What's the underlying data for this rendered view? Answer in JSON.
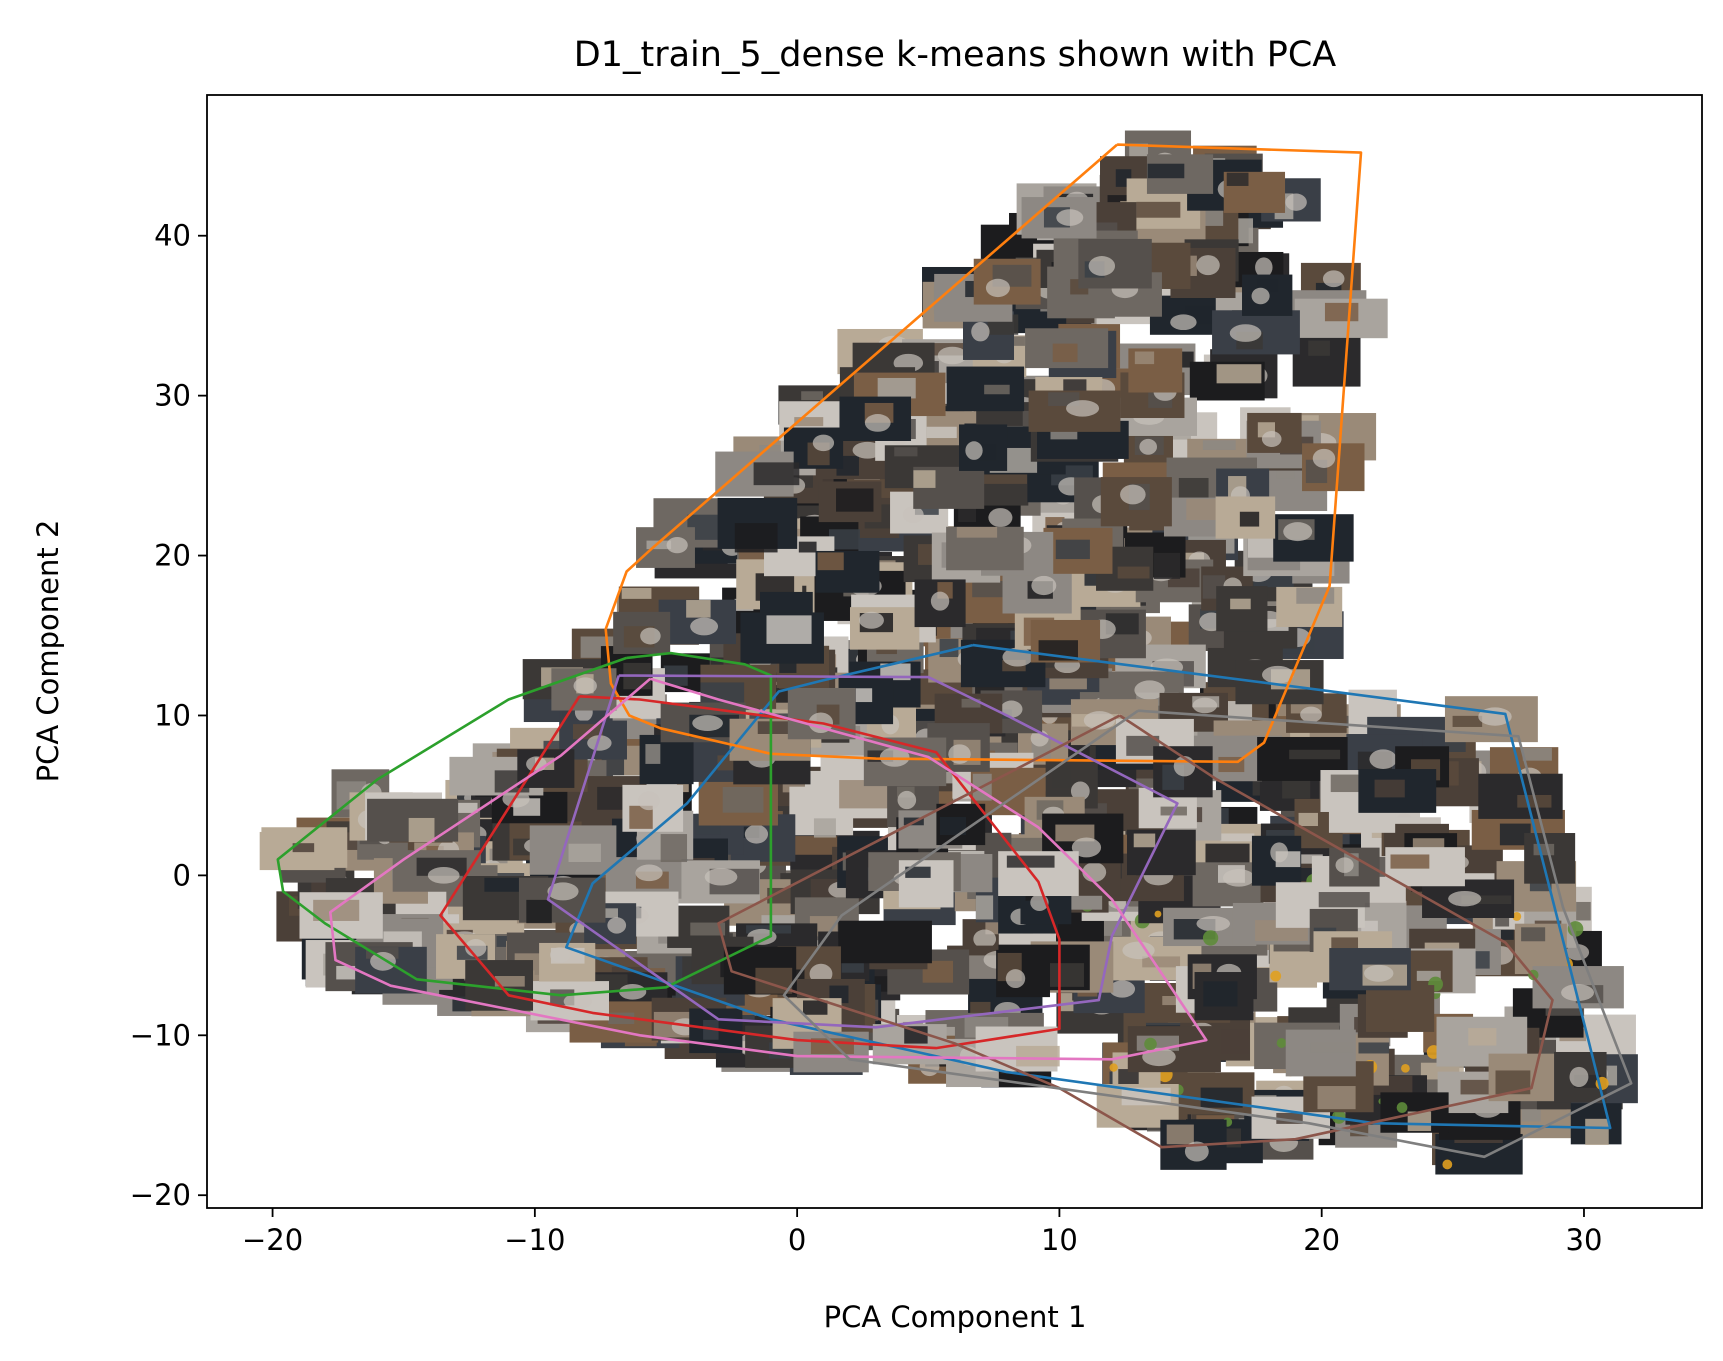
{
  "chart_data": {
    "type": "scatter",
    "title": "D1_train_5_dense k-means shown with PCA",
    "xlabel": "PCA Component 1",
    "ylabel": "PCA Component 2",
    "xlim": [
      -22.5,
      34.5
    ],
    "ylim": [
      -20.8,
      48.8
    ],
    "xticks": [
      -20,
      -10,
      0,
      10,
      20,
      30
    ],
    "yticks": [
      -20,
      -10,
      0,
      10,
      20,
      30,
      40
    ],
    "xtick_labels": [
      "−20",
      "−10",
      "0",
      "10",
      "20",
      "30"
    ],
    "ytick_labels": [
      "−20",
      "−10",
      "0",
      "10",
      "20",
      "30",
      "40"
    ],
    "grid": false,
    "legend": "none",
    "point_markers": "image thumbnails of kitchen-sink video frames",
    "series": [
      {
        "color": "#1f77b4",
        "hull": [
          [
            6.7,
            14.4
          ],
          [
            27,
            10.1
          ],
          [
            30.2,
            -10.5
          ],
          [
            31,
            -15.8
          ],
          [
            22,
            -15.5
          ],
          [
            8,
            -12.3
          ],
          [
            -1,
            -9
          ],
          [
            -8.8,
            -4.5
          ],
          [
            -7.8,
            -0.5
          ],
          [
            -4.2,
            4.5
          ],
          [
            -0.7,
            11.5
          ],
          [
            1,
            12.2
          ],
          [
            6.7,
            14.4
          ]
        ]
      },
      {
        "color": "#ff7f0e",
        "hull": [
          [
            12.2,
            45.7
          ],
          [
            21.5,
            45.2
          ],
          [
            20.3,
            18.1
          ],
          [
            17.8,
            8.3
          ],
          [
            16.8,
            7.1
          ],
          [
            3,
            7.3
          ],
          [
            -1,
            7.6
          ],
          [
            -5.2,
            9.2
          ],
          [
            -6.4,
            10
          ],
          [
            -7.1,
            12
          ],
          [
            -7.3,
            15.4
          ],
          [
            -6.5,
            19
          ],
          [
            -5.5,
            20.5
          ],
          [
            12.2,
            45.7
          ]
        ]
      },
      {
        "color": "#2ca02c",
        "hull": [
          [
            -6.5,
            13.6
          ],
          [
            -4.8,
            13.9
          ],
          [
            -2,
            13.2
          ],
          [
            -1,
            12.5
          ],
          [
            -1,
            -3.8
          ],
          [
            -5,
            -7
          ],
          [
            -9,
            -7.5
          ],
          [
            -14.5,
            -6.5
          ],
          [
            -18,
            -3
          ],
          [
            -19.6,
            -1
          ],
          [
            -19.8,
            1
          ],
          [
            -16,
            6
          ],
          [
            -11,
            11
          ],
          [
            -6.5,
            13.6
          ]
        ]
      },
      {
        "color": "#d62728",
        "hull": [
          [
            -8.3,
            11.2
          ],
          [
            -6,
            11
          ],
          [
            1,
            9.5
          ],
          [
            5.3,
            7.7
          ],
          [
            9.2,
            -0.4
          ],
          [
            10,
            -4
          ],
          [
            10,
            -9.6
          ],
          [
            5.3,
            -10.8
          ],
          [
            0,
            -10.3
          ],
          [
            -7.8,
            -8.6
          ],
          [
            -11,
            -7.5
          ],
          [
            -13.6,
            -2.5
          ],
          [
            -8.3,
            11.2
          ]
        ]
      },
      {
        "color": "#9467bd",
        "hull": [
          [
            -6.8,
            12.5
          ],
          [
            5,
            12.4
          ],
          [
            8,
            10
          ],
          [
            14.5,
            4.5
          ],
          [
            12,
            -3.8
          ],
          [
            11.5,
            -7.8
          ],
          [
            3,
            -9.5
          ],
          [
            -3,
            -9
          ],
          [
            -9.5,
            -1.5
          ],
          [
            -6.8,
            12.5
          ]
        ]
      },
      {
        "color": "#8c564b",
        "hull": [
          [
            12.3,
            10
          ],
          [
            16,
            6
          ],
          [
            27,
            -4.2
          ],
          [
            28.8,
            -7.8
          ],
          [
            28,
            -13.3
          ],
          [
            19,
            -16.5
          ],
          [
            13.9,
            -17
          ],
          [
            10,
            -13.3
          ],
          [
            6,
            -10.5
          ],
          [
            -2.5,
            -6
          ],
          [
            -3,
            -3
          ],
          [
            12.3,
            10
          ]
        ]
      },
      {
        "color": "#e377c2",
        "hull": [
          [
            -5.6,
            12.3
          ],
          [
            -3,
            11
          ],
          [
            5,
            7.4
          ],
          [
            9.2,
            3
          ],
          [
            12,
            -1.5
          ],
          [
            15.6,
            -10.3
          ],
          [
            12,
            -11.5
          ],
          [
            0,
            -11.3
          ],
          [
            -6,
            -10
          ],
          [
            -15.5,
            -6.9
          ],
          [
            -17.6,
            -5.3
          ],
          [
            -17.8,
            -2.3
          ],
          [
            -15,
            1
          ],
          [
            -9,
            7.5
          ],
          [
            -5.6,
            12.3
          ]
        ]
      },
      {
        "color": "#7f7f7f",
        "hull": [
          [
            13,
            10.3
          ],
          [
            27.5,
            8.7
          ],
          [
            29.2,
            -2
          ],
          [
            31.8,
            -13
          ],
          [
            26.2,
            -17.6
          ],
          [
            19.5,
            -15.5
          ],
          [
            2,
            -11.5
          ],
          [
            -0.5,
            -7.5
          ],
          [
            1.7,
            -2.5
          ],
          [
            13,
            10.3
          ]
        ]
      }
    ]
  }
}
